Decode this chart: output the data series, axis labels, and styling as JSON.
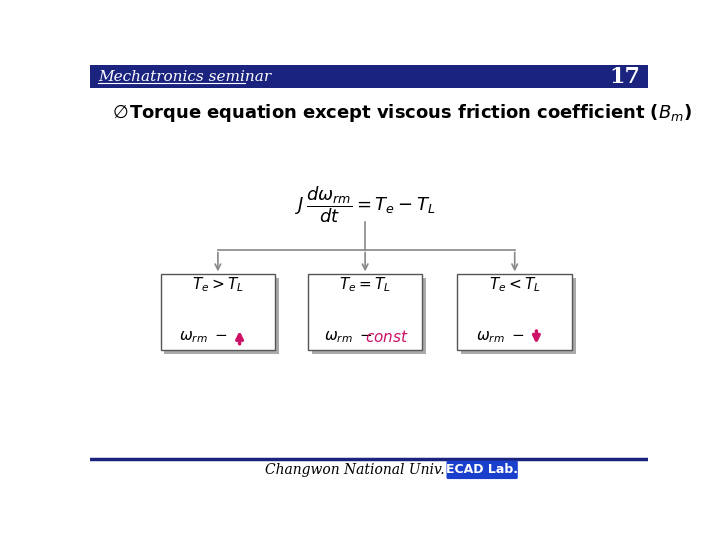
{
  "title": "Mechatronics seminar",
  "page_number": "17",
  "header_line_color": "#1a237e",
  "background_color": "#ffffff",
  "footer_text": "Changwon National Univ.",
  "footer_badge": "ECAD Lab.",
  "badge_bg": "#1a3fcc",
  "badge_text_color": "#ffffff",
  "arrow_color": "#cc1166",
  "connector_color": "#888888",
  "box_border_color": "#555555",
  "box_shadow_color": "#aaaaaa"
}
